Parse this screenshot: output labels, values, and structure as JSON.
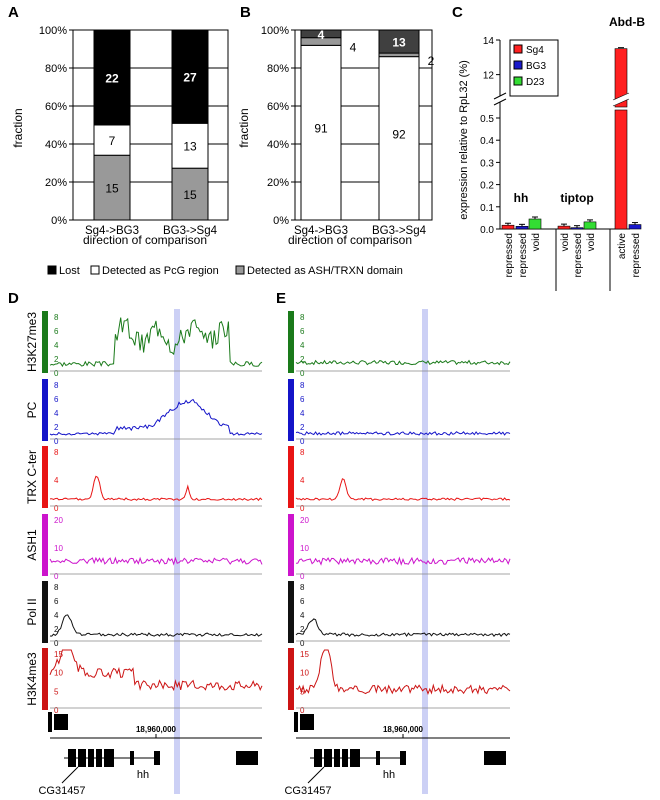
{
  "panel_labels": {
    "A": "A",
    "B": "B",
    "C": "C",
    "D": "D",
    "E": "E"
  },
  "legend_ab": {
    "lost": "Lost",
    "pcg": "Detected as PcG region",
    "ash": "Detected as ASH/TRXN domain"
  },
  "colors": {
    "lost": "#000000",
    "pcg": "#ffffff",
    "ash": "#999999",
    "dark_b": "#404040",
    "sg4": "#ff2020",
    "bg3": "#1a1acc",
    "d23": "#33dd33",
    "h3k27": "#1a7a1a",
    "pc": "#1414c8",
    "trx": "#e81414",
    "ash1": "#cc14cc",
    "pol": "#111111",
    "h3k4": "#cc1414",
    "highlight": "#ccd0f5"
  },
  "chart_data": [
    {
      "type": "bar",
      "stacked": true,
      "panel": "A",
      "categories": [
        "Sg4->BG3",
        "BG3->Sg4"
      ],
      "series": [
        {
          "name": "Detected as ASH/TRXN domain",
          "values": [
            15,
            15
          ]
        },
        {
          "name": "Detected as PcG region",
          "values": [
            7,
            13
          ]
        },
        {
          "name": "Lost",
          "values": [
            22,
            27
          ]
        }
      ],
      "ylabel": "fraction",
      "xlabel": "direction of comparison",
      "yticks": [
        "0%",
        "20%",
        "40%",
        "60%",
        "80%",
        "100%"
      ],
      "ylim": [
        0,
        100
      ]
    },
    {
      "type": "bar",
      "stacked": true,
      "panel": "B",
      "categories": [
        "Sg4->BG3",
        "BG3->Sg4"
      ],
      "series": [
        {
          "name": "Detected as PcG region",
          "values": [
            91,
            92
          ]
        },
        {
          "name": "Detected as ASH/TRXN domain",
          "values": [
            4,
            2
          ]
        },
        {
          "name": "Lost",
          "values": [
            4,
            13
          ]
        }
      ],
      "ylabel": "fraction",
      "xlabel": "direction of comparison",
      "yticks": [
        "0%",
        "20%",
        "40%",
        "60%",
        "80%",
        "100%"
      ],
      "ylim": [
        0,
        100
      ]
    },
    {
      "type": "bar",
      "panel": "C",
      "ylabel": "expression relative to RpL32 (%)",
      "yticks_low": [
        "0.0",
        "0.1",
        "0.2",
        "0.3",
        "0.4",
        "0.5"
      ],
      "yticks_high": [
        "12",
        "14"
      ],
      "groups": [
        {
          "gene": "hh",
          "labels": [
            "repressed",
            "repressed",
            "void"
          ],
          "values": [
            0.017,
            0.012,
            0.045
          ]
        },
        {
          "gene": "tiptop",
          "labels": [
            "void",
            "repressed",
            "void"
          ],
          "values": [
            0.013,
            0.006,
            0.032
          ]
        },
        {
          "gene": "Abd-B",
          "labels": [
            "active",
            "repressed"
          ],
          "values": [
            13.5,
            0.02
          ]
        }
      ],
      "series_names": [
        "Sg4",
        "BG3",
        "D23"
      ]
    },
    {
      "type": "line",
      "panel": "D",
      "tracks": [
        {
          "name": "H3K27me3",
          "ticks": [
            "8",
            "6",
            "4",
            "2",
            "0"
          ]
        },
        {
          "name": "PC",
          "ticks": [
            "8",
            "6",
            "4",
            "2",
            "0"
          ]
        },
        {
          "name": "TRX C-ter",
          "ticks": [
            "8",
            "4",
            "0"
          ]
        },
        {
          "name": "ASH1",
          "ticks": [
            "20",
            "10",
            "0"
          ]
        },
        {
          "name": "Pol II",
          "ticks": [
            "8",
            "6",
            "4",
            "2",
            "0"
          ]
        },
        {
          "name": "H3K4me3",
          "ticks": [
            "15",
            "10",
            "5",
            "0"
          ]
        }
      ],
      "coordinate": "18,960,000",
      "genes": [
        "hh",
        "CG31457"
      ]
    },
    {
      "type": "line",
      "panel": "E",
      "tracks": [
        {
          "name": "H3K27me3"
        },
        {
          "name": "PC"
        },
        {
          "name": "TRX C-ter"
        },
        {
          "name": "ASH1"
        },
        {
          "name": "Pol II"
        },
        {
          "name": "H3K4me3"
        }
      ],
      "coordinate": "18,960,000",
      "genes": [
        "hh",
        "CG31457"
      ]
    }
  ]
}
